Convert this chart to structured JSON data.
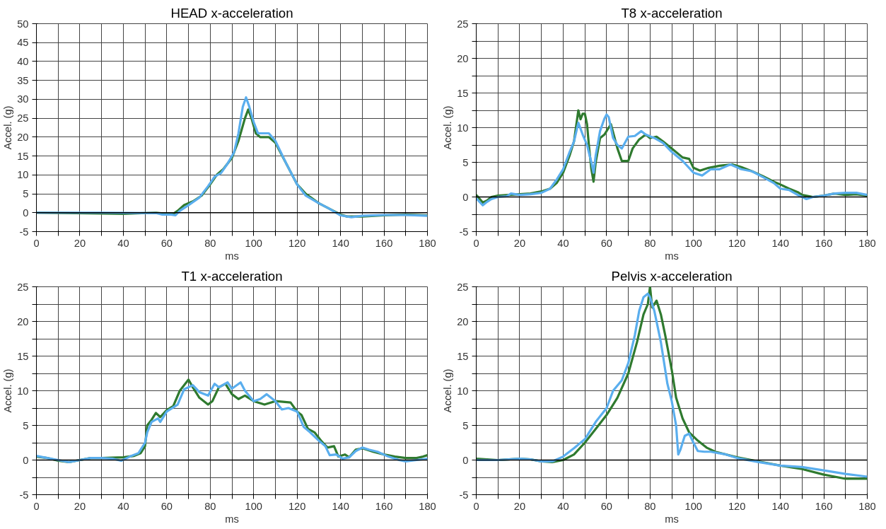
{
  "chart_data": [
    {
      "type": "line",
      "title": "HEAD x-acceleration",
      "xlabel": "ms",
      "ylabel": "Accel. (g)",
      "xlim": [
        0,
        180
      ],
      "ylim": [
        -5,
        50
      ],
      "xticks": [
        0,
        {
          "value": 10,
          "label": null
        },
        20,
        {
          "value": 30,
          "label": null
        },
        40,
        {
          "value": 50,
          "label": null
        },
        60,
        {
          "value": 70,
          "label": null
        },
        80,
        {
          "value": 90,
          "label": null
        },
        100,
        {
          "value": 110,
          "label": null
        },
        120,
        {
          "value": 130,
          "label": null
        },
        140,
        {
          "value": 150,
          "label": null
        },
        160,
        {
          "value": 170,
          "label": null
        },
        180
      ],
      "yticks": [
        -5,
        0,
        5,
        10,
        15,
        20,
        25,
        30,
        35,
        40,
        45,
        50
      ],
      "grid": true,
      "ref_lines": [
        {
          "axis": "y",
          "value": 0,
          "color": "#000000"
        }
      ],
      "series": [
        {
          "color": "#2f7a2f",
          "x": [
            0,
            30,
            40,
            55,
            60,
            63,
            65,
            68,
            72,
            76,
            80,
            83,
            86,
            90,
            93,
            96,
            97.5,
            99,
            101,
            103,
            107,
            110,
            115,
            120,
            124,
            130,
            135,
            140,
            143,
            150,
            160,
            170,
            180
          ],
          "values": [
            0,
            -0.2,
            -0.3,
            0,
            -0.3,
            -0.3,
            0.5,
            2,
            3,
            4.5,
            7.5,
            10,
            11.5,
            14.5,
            19,
            25,
            27.3,
            25,
            21,
            20,
            20,
            18.5,
            13,
            7.5,
            5,
            2.5,
            1,
            -0.5,
            -1,
            -1,
            -0.7,
            -0.5,
            -0.7
          ]
        },
        {
          "color": "#5aaeee",
          "x": [
            0,
            30,
            55,
            58,
            62,
            64,
            66,
            70,
            75,
            79,
            82,
            85,
            88,
            91,
            93,
            95,
            96.5,
            98,
            100,
            102,
            104,
            107,
            110,
            115,
            120,
            124,
            130,
            135,
            140,
            145,
            150,
            160,
            170,
            180
          ],
          "values": [
            0,
            0,
            -0.1,
            -0.5,
            -0.5,
            -0.7,
            0.5,
            2,
            4,
            7,
            9.5,
            10.5,
            13,
            16,
            21,
            28,
            30.5,
            28,
            24,
            21,
            21,
            21,
            19,
            13,
            7.5,
            4.5,
            2.5,
            1,
            -0.7,
            -1.2,
            -0.8,
            -0.6,
            -0.6,
            -0.8
          ]
        }
      ]
    },
    {
      "type": "line",
      "title": "T8 x-acceleration",
      "xlabel": "ms",
      "ylabel": "Accel. (g)",
      "xlim": [
        0,
        180
      ],
      "ylim": [
        -5,
        25
      ],
      "xticks": [
        0,
        {
          "value": 10,
          "label": null
        },
        20,
        {
          "value": 30,
          "label": null
        },
        40,
        {
          "value": 50,
          "label": null
        },
        60,
        {
          "value": 70,
          "label": null
        },
        80,
        {
          "value": 90,
          "label": null
        },
        100,
        {
          "value": 110,
          "label": null
        },
        120,
        {
          "value": 130,
          "label": null
        },
        140,
        {
          "value": 150,
          "label": null
        },
        160,
        {
          "value": 170,
          "label": null
        },
        180
      ],
      "yticks": [
        -5,
        {
          "value": -2.5,
          "label": null
        },
        0,
        {
          "value": 2.5,
          "label": null
        },
        5,
        {
          "value": 7.5,
          "label": null
        },
        10,
        {
          "value": 12.5,
          "label": null
        },
        15,
        {
          "value": 17.5,
          "label": null
        },
        20,
        {
          "value": 22.5,
          "label": null
        },
        25
      ],
      "grid": true,
      "ref_lines": [
        {
          "axis": "y",
          "value": 0,
          "color": "#000000"
        }
      ],
      "series": [
        {
          "color": "#2f7a2f",
          "x": [
            0,
            3,
            5,
            7,
            10,
            15,
            20,
            25,
            30,
            34,
            37,
            40,
            43,
            45,
            47,
            48,
            49,
            50,
            51,
            52,
            53,
            54,
            55,
            57,
            59,
            61,
            62,
            65,
            67,
            70,
            72,
            75,
            78,
            80,
            83,
            86,
            90,
            95,
            98,
            100,
            103,
            107,
            112,
            118,
            122,
            127,
            132,
            137,
            140,
            144,
            148,
            150,
            155,
            160,
            165,
            170,
            175,
            180
          ],
          "values": [
            0.3,
            -0.8,
            -0.5,
            0,
            0.2,
            0.3,
            0.4,
            0.5,
            0.8,
            1.2,
            2,
            3.5,
            6,
            8,
            12.5,
            11.2,
            12,
            12,
            10.5,
            7,
            4,
            2.2,
            5,
            8.5,
            9,
            10,
            10.5,
            7,
            5.2,
            5.2,
            7,
            8.3,
            9,
            8.5,
            8.7,
            8,
            7,
            5.7,
            5.5,
            4.2,
            3.8,
            4.2,
            4.5,
            4.7,
            4.3,
            3.7,
            3,
            2.2,
            1.8,
            1.2,
            0.7,
            0.3,
            0,
            0.2,
            0.5,
            0.3,
            0.4,
            0.2
          ]
        },
        {
          "color": "#5aaeee",
          "x": [
            0,
            3,
            5,
            7,
            10,
            14,
            16,
            20,
            25,
            30,
            34,
            37,
            40,
            43,
            45,
            47,
            49,
            51,
            53,
            54,
            55,
            57,
            59,
            60,
            61,
            63,
            65,
            67,
            70,
            73,
            76,
            78,
            82,
            86,
            90,
            95,
            100,
            104,
            108,
            112,
            117,
            122,
            127,
            133,
            137,
            140,
            144,
            148,
            152,
            155,
            160,
            165,
            170,
            175,
            180
          ],
          "values": [
            -0.2,
            -1.2,
            -0.7,
            -0.3,
            0,
            0.1,
            0.5,
            0.3,
            0.4,
            0.6,
            1.2,
            2.5,
            4,
            6.5,
            8,
            10.7,
            9,
            7.5,
            5,
            3.5,
            6,
            9.5,
            11.3,
            11.9,
            11.5,
            8.5,
            7.5,
            7,
            8.7,
            8.8,
            9.5,
            9,
            8.5,
            7.8,
            6.5,
            5.2,
            3.5,
            3.1,
            4,
            4,
            4.7,
            4,
            3.7,
            2.7,
            2,
            1.2,
            1,
            0.3,
            -0.3,
            0,
            0.2,
            0.5,
            0.6,
            0.6,
            0.3
          ]
        }
      ]
    },
    {
      "type": "line",
      "title": "T1 x-acceleration",
      "xlabel": "ms",
      "ylabel": "Accel. (g)",
      "xlim": [
        0,
        180
      ],
      "ylim": [
        -5,
        25
      ],
      "xticks": [
        0,
        {
          "value": 10,
          "label": null
        },
        20,
        {
          "value": 30,
          "label": null
        },
        40,
        {
          "value": 50,
          "label": null
        },
        60,
        {
          "value": 70,
          "label": null
        },
        80,
        {
          "value": 90,
          "label": null
        },
        100,
        {
          "value": 110,
          "label": null
        },
        120,
        {
          "value": 130,
          "label": null
        },
        140,
        {
          "value": 150,
          "label": null
        },
        160,
        {
          "value": 170,
          "label": null
        },
        180
      ],
      "yticks": [
        -5,
        {
          "value": -2.5,
          "label": null
        },
        0,
        {
          "value": 2.5,
          "label": null
        },
        5,
        {
          "value": 7.5,
          "label": null
        },
        10,
        {
          "value": 12.5,
          "label": null
        },
        15,
        {
          "value": 17.5,
          "label": null
        },
        20,
        {
          "value": 22.5,
          "label": null
        },
        25
      ],
      "grid": true,
      "ref_lines": [
        {
          "axis": "y",
          "value": 0,
          "color": "#000000"
        }
      ],
      "series": [
        {
          "color": "#2f7a2f",
          "x": [
            0,
            5,
            10,
            15,
            20,
            25,
            30,
            40,
            45,
            48,
            50,
            51,
            53,
            55,
            57,
            60,
            63,
            66,
            70,
            72,
            75,
            79,
            81,
            84,
            87,
            90,
            93,
            96,
            100,
            105,
            110,
            117,
            120,
            122,
            125,
            128,
            131,
            134,
            137,
            139,
            142,
            144,
            147,
            150,
            155,
            160,
            165,
            170,
            175,
            178,
            180
          ],
          "values": [
            0.5,
            0.3,
            -0.1,
            -0.3,
            0,
            0.3,
            0.3,
            0.4,
            0.6,
            1,
            2,
            5,
            5.8,
            6.8,
            6.2,
            7.2,
            7.8,
            10,
            11.6,
            10.5,
            9,
            8,
            8.5,
            10.5,
            11,
            9.5,
            8.8,
            9.3,
            8.5,
            8,
            8.5,
            8.3,
            7,
            6.5,
            4.5,
            4,
            2.8,
            1.8,
            2,
            0.5,
            0.8,
            0.4,
            1.5,
            1.7,
            1.2,
            0.8,
            0.5,
            0.3,
            0.3,
            0.5,
            0.7
          ]
        },
        {
          "color": "#5aaeee",
          "x": [
            0,
            5,
            10,
            15,
            20,
            25,
            30,
            35,
            39,
            43,
            47,
            50,
            51,
            53,
            56,
            57,
            60,
            65,
            68,
            72,
            75,
            79,
            82,
            84,
            88,
            90,
            94,
            96,
            100,
            103,
            106,
            110,
            113,
            116,
            120,
            123,
            126,
            130,
            133,
            135,
            138,
            141,
            144,
            147,
            150,
            153,
            157,
            162,
            167,
            170,
            175,
            180
          ],
          "values": [
            0.6,
            0.3,
            0,
            -0.3,
            0,
            0.3,
            0.3,
            0.2,
            -0.1,
            0.5,
            1,
            2.5,
            4,
            5.5,
            6,
            5.5,
            7,
            8,
            10.2,
            10.8,
            9.8,
            9.3,
            11,
            10.5,
            11.2,
            10.3,
            11.2,
            10,
            8.5,
            8.8,
            9.5,
            8.5,
            7.3,
            7.5,
            7,
            4.8,
            4,
            2.8,
            2,
            0.7,
            0.8,
            0.2,
            0.4,
            1.3,
            1.8,
            1.5,
            1.2,
            0.5,
            0,
            -0.2,
            0,
            0.2
          ]
        }
      ]
    },
    {
      "type": "line",
      "title": "Pelvis x-acceleration",
      "xlabel": "ms",
      "ylabel": "Accel. (g)",
      "xlim": [
        0,
        180
      ],
      "ylim": [
        -5,
        25
      ],
      "xticks": [
        0,
        {
          "value": 10,
          "label": null
        },
        20,
        {
          "value": 30,
          "label": null
        },
        40,
        {
          "value": 50,
          "label": null
        },
        60,
        {
          "value": 70,
          "label": null
        },
        80,
        {
          "value": 90,
          "label": null
        },
        100,
        {
          "value": 110,
          "label": null
        },
        120,
        {
          "value": 130,
          "label": null
        },
        140,
        {
          "value": 150,
          "label": null
        },
        160,
        {
          "value": 170,
          "label": null
        },
        180
      ],
      "yticks": [
        -5,
        {
          "value": -2.5,
          "label": null
        },
        0,
        {
          "value": 2.5,
          "label": null
        },
        5,
        {
          "value": 7.5,
          "label": null
        },
        10,
        {
          "value": 12.5,
          "label": null
        },
        15,
        {
          "value": 17.5,
          "label": null
        },
        20,
        {
          "value": 22.5,
          "label": null
        },
        25
      ],
      "grid": true,
      "ref_lines": [
        {
          "axis": "y",
          "value": 0,
          "color": "#000000"
        }
      ],
      "series": [
        {
          "color": "#2f7a2f",
          "x": [
            0,
            10,
            20,
            25,
            30,
            35,
            40,
            45,
            50,
            55,
            60,
            65,
            70,
            74,
            77,
            79,
            80,
            81,
            83,
            85,
            87,
            90,
            92,
            95,
            98,
            102,
            106,
            110,
            120,
            130,
            140,
            150,
            160,
            170,
            180
          ],
          "values": [
            0.2,
            0,
            0.2,
            0.1,
            -0.2,
            -0.3,
            0,
            0.8,
            2.5,
            4.5,
            6.5,
            9,
            12.5,
            17,
            21,
            22.5,
            25,
            22,
            23,
            21,
            18,
            13,
            9,
            6,
            4,
            2.8,
            1.8,
            1.2,
            0.4,
            -0.2,
            -0.8,
            -1.3,
            -2.1,
            -2.7,
            -2.7
          ]
        },
        {
          "color": "#5aaeee",
          "x": [
            0,
            10,
            20,
            25,
            30,
            35,
            40,
            45,
            50,
            55,
            60,
            63,
            67,
            70,
            73,
            75,
            77,
            79,
            80,
            82,
            85,
            88,
            90,
            92,
            93,
            94,
            96,
            98,
            100,
            102,
            105,
            108,
            115,
            120,
            130,
            140,
            150,
            160,
            170,
            180
          ],
          "values": [
            0,
            0,
            0.2,
            0.1,
            -0.2,
            -0.2,
            0.5,
            1.7,
            3,
            5.5,
            7.5,
            10,
            11.5,
            14,
            18,
            21.5,
            23.5,
            24,
            23.5,
            21.5,
            17,
            11,
            8.5,
            5,
            0.8,
            1.5,
            3.5,
            3.8,
            2.5,
            1.3,
            1.2,
            1.2,
            0.8,
            0.3,
            -0.3,
            -0.8,
            -1,
            -1.5,
            -2,
            -2.4
          ]
        }
      ]
    }
  ]
}
